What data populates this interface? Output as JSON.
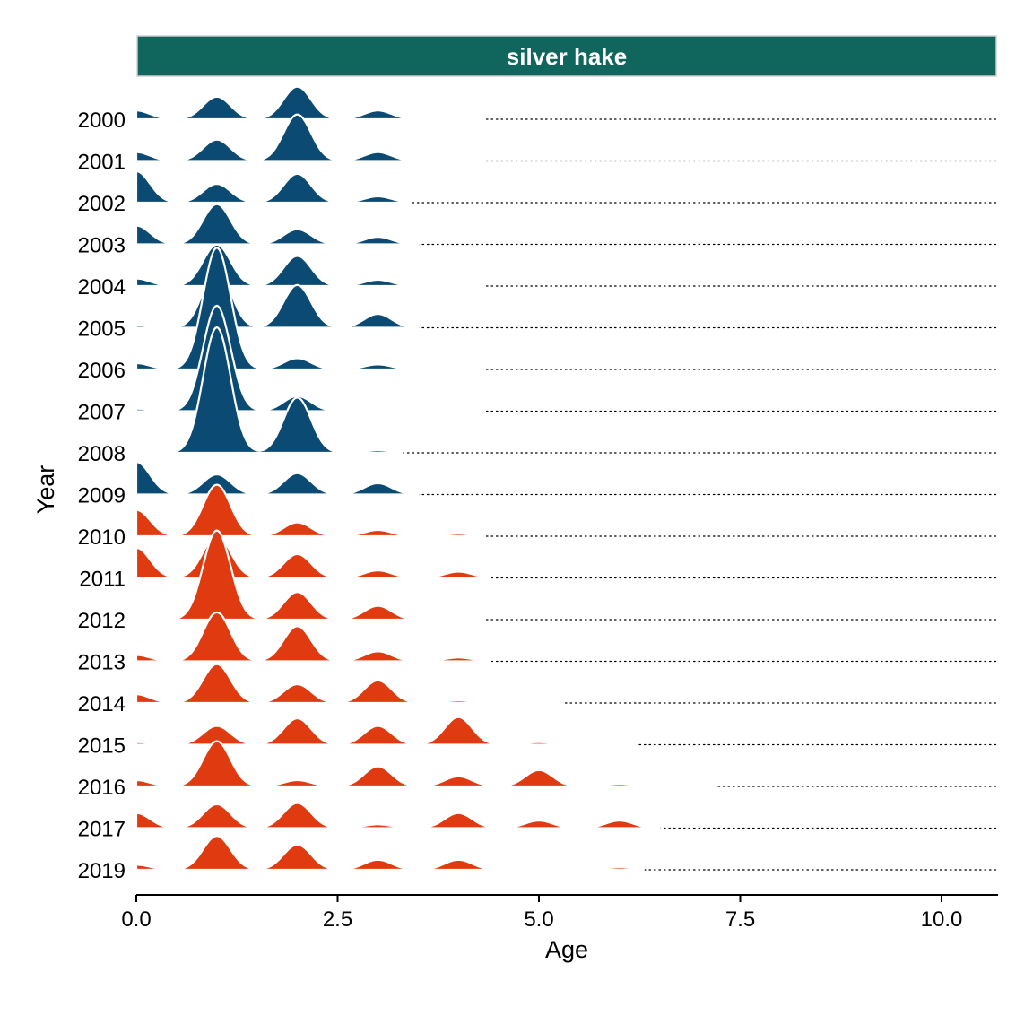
{
  "colors": {
    "strip_fill": "#10655c",
    "strip_border": "#d0d0d0",
    "early_period": "#0b4a72",
    "late_period": "#e03a11",
    "ridge_outline": "#ffffff",
    "baseline": "#000000",
    "axis": "#000000",
    "background": "#ffffff"
  },
  "chart_data": {
    "type": "ridgeline",
    "panel_title": "silver hake",
    "xlabel": "Age",
    "ylabel": "Year",
    "xlim": [
      0,
      10.7
    ],
    "x_ticks": [
      {
        "value": 0.0,
        "label": "0.0"
      },
      {
        "value": 2.5,
        "label": "2.5"
      },
      {
        "value": 5.0,
        "label": "5.0"
      },
      {
        "value": 7.5,
        "label": "7.5"
      },
      {
        "value": 10.0,
        "label": "10.0"
      }
    ],
    "grid": false,
    "legend": "none",
    "density_bandwidth": 0.17,
    "series": [
      {
        "year": "2000",
        "group": "early",
        "ages": [
          0,
          1,
          2,
          3,
          4
        ],
        "density": [
          0.07,
          0.18,
          0.26,
          0.07,
          0.01
        ],
        "range": [
          0,
          4.3
        ]
      },
      {
        "year": "2001",
        "group": "early",
        "ages": [
          0,
          1,
          2,
          3,
          4
        ],
        "density": [
          0.07,
          0.17,
          0.37,
          0.07,
          0.01
        ],
        "range": [
          0,
          4.3
        ]
      },
      {
        "year": "2002",
        "group": "early",
        "ages": [
          0,
          1,
          2,
          3
        ],
        "density": [
          0.25,
          0.15,
          0.23,
          0.05
        ],
        "range": [
          0,
          3.4
        ]
      },
      {
        "year": "2003",
        "group": "early",
        "ages": [
          0,
          1,
          2,
          3
        ],
        "density": [
          0.15,
          0.32,
          0.12,
          0.06
        ],
        "range": [
          0,
          3.5
        ]
      },
      {
        "year": "2004",
        "group": "early",
        "ages": [
          0,
          1,
          2,
          3,
          4
        ],
        "density": [
          0.06,
          0.33,
          0.24,
          0.05,
          0.005
        ],
        "range": [
          0,
          4.3
        ]
      },
      {
        "year": "2005",
        "group": "early",
        "ages": [
          0,
          1,
          2,
          3
        ],
        "density": [
          0.02,
          0.48,
          0.34,
          0.11
        ],
        "range": [
          0,
          3.5
        ]
      },
      {
        "year": "2006",
        "group": "early",
        "ages": [
          0,
          1,
          2,
          3,
          4
        ],
        "density": [
          0.05,
          0.97,
          0.09,
          0.04,
          0.01
        ],
        "range": [
          0,
          4.3
        ]
      },
      {
        "year": "2007",
        "group": "early",
        "ages": [
          0,
          1,
          2,
          3,
          4
        ],
        "density": [
          0.02,
          0.84,
          0.12,
          0.01,
          0.005
        ],
        "range": [
          0,
          4.3
        ]
      },
      {
        "year": "2008",
        "group": "early",
        "ages": [
          0,
          1,
          2,
          3
        ],
        "density": [
          0.005,
          1.0,
          0.44,
          0.02
        ],
        "range": [
          0,
          3.3
        ]
      },
      {
        "year": "2009",
        "group": "early",
        "ages": [
          0,
          1,
          2,
          3
        ],
        "density": [
          0.26,
          0.16,
          0.17,
          0.09
        ],
        "range": [
          0,
          3.5
        ]
      },
      {
        "year": "2010",
        "group": "late",
        "ages": [
          0,
          1,
          2,
          3,
          4
        ],
        "density": [
          0.21,
          0.41,
          0.11,
          0.05,
          0.02
        ],
        "range": [
          0,
          4.3
        ]
      },
      {
        "year": "2011",
        "group": "late",
        "ages": [
          0,
          1,
          2,
          3,
          4
        ],
        "density": [
          0.24,
          0.34,
          0.19,
          0.06,
          0.05
        ],
        "range": [
          0,
          4.4
        ]
      },
      {
        "year": "2012",
        "group": "late",
        "ages": [
          0,
          1,
          2,
          3,
          4
        ],
        "density": [
          0.01,
          0.71,
          0.22,
          0.11,
          0.01
        ],
        "range": [
          0,
          4.3
        ]
      },
      {
        "year": "2013",
        "group": "late",
        "ages": [
          0,
          1,
          2,
          3,
          4
        ],
        "density": [
          0.05,
          0.39,
          0.28,
          0.08,
          0.03
        ],
        "range": [
          0,
          4.4
        ]
      },
      {
        "year": "2014",
        "group": "late",
        "ages": [
          0,
          1,
          2,
          3,
          4,
          5
        ],
        "density": [
          0.07,
          0.31,
          0.15,
          0.18,
          0.02,
          0.01
        ],
        "range": [
          0,
          5.3
        ]
      },
      {
        "year": "2015",
        "group": "late",
        "ages": [
          0,
          1,
          2,
          3,
          4,
          5,
          6
        ],
        "density": [
          0.02,
          0.15,
          0.21,
          0.15,
          0.22,
          0.02,
          0.01
        ],
        "range": [
          0,
          6.2
        ]
      },
      {
        "year": "2016",
        "group": "late",
        "ages": [
          0,
          1,
          2,
          3,
          4,
          5,
          6
        ],
        "density": [
          0.05,
          0.36,
          0.05,
          0.16,
          0.08,
          0.13,
          0.02
        ],
        "range": [
          0,
          7.2
        ]
      },
      {
        "year": "2017",
        "group": "late",
        "ages": [
          0,
          1,
          2,
          3,
          4,
          5,
          6
        ],
        "density": [
          0.12,
          0.19,
          0.2,
          0.03,
          0.12,
          0.06,
          0.06
        ],
        "range": [
          0,
          6.5
        ]
      },
      {
        "year": "2019",
        "group": "late",
        "ages": [
          0,
          1,
          2,
          3,
          4,
          5,
          6
        ],
        "density": [
          0.04,
          0.27,
          0.2,
          0.08,
          0.08,
          0.01,
          0.02
        ],
        "range": [
          0,
          6.3
        ]
      }
    ]
  }
}
